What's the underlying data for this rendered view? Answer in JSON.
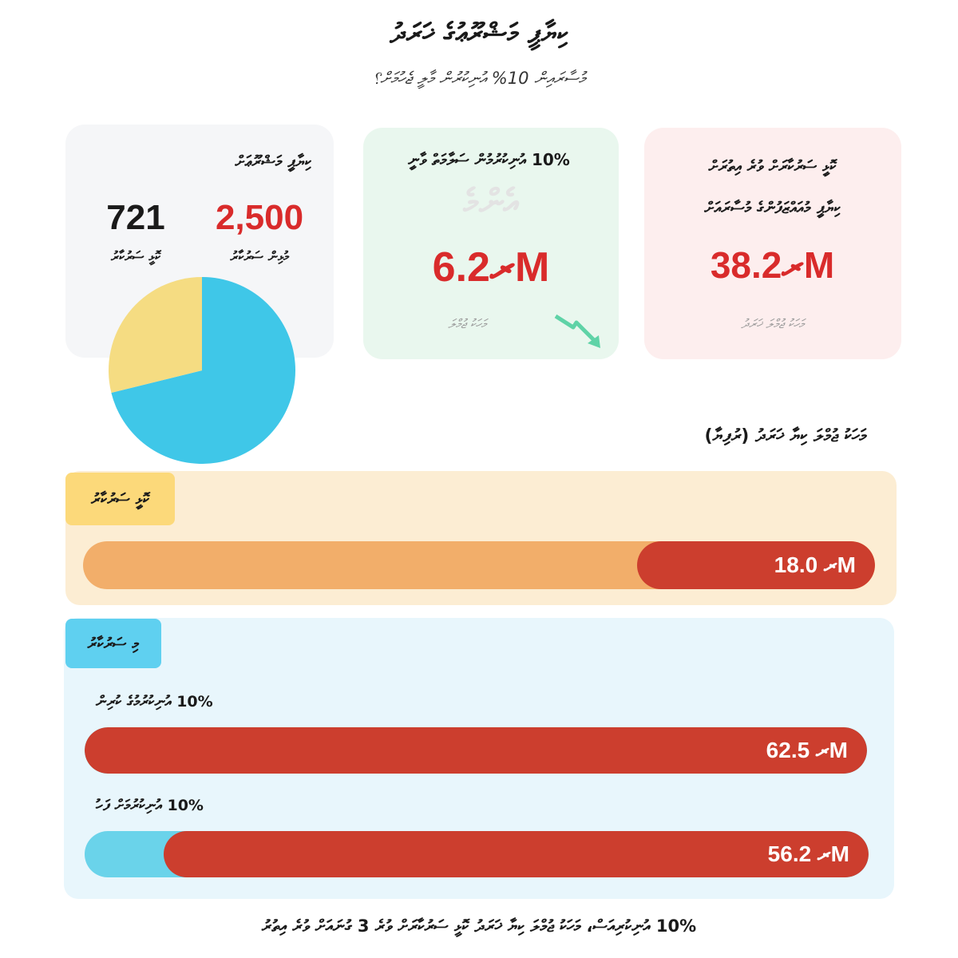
{
  "header": {
    "title": "ކިޔާޕީ މަޝްރޫޢުގެ ޚަރަދު",
    "subtitle": "މުސާރައިން 10% އުނިކުރުން މާލީ ޖެހުމަށް؟"
  },
  "summary_card": {
    "title": "ކިޔާޕީ މަޝްރޫޢަށް",
    "total_value": "2,500",
    "total_label": "މުޅިން ސަރުކާރު",
    "part_value": "721",
    "part_label": "ކޮޅީ ސަރުކާރު",
    "colors": {
      "total": "#d92b2b",
      "part": "#1a1a1a"
    }
  },
  "saved_card": {
    "title": "10% އުނިކުރުމުން ސަލާމަތް ވާނީ",
    "watermark": "އެންމެ",
    "amount": "ރ6.2M",
    "note": "މަހަކު ޖުމްލަ",
    "icon": "trend-down-arrow-icon",
    "colors": {
      "amount": "#d92b2b",
      "arrow": "#5fd3a7"
    }
  },
  "cost_card": {
    "title_line1": "ކޮޅީ ސަރުކާރަށް ވުރެ އިތުރަށް",
    "title_line2": "ކިޔާޕީ މުއައްޒަފުންގެ މުސާރައަށް",
    "amount": "ރ38.2M",
    "note": "މަހަކު ޖުމްލަ ޚަރަދު",
    "colors": {
      "amount": "#d92b2b"
    }
  },
  "monthly_section_title": "މަހަކު ޖުމްލަ ކިޔާ ޚަރަދު (ރުފިޔާ)",
  "sections": {
    "provincial": {
      "label": "ކޮޅީ ސަރުކާރު",
      "bar_value": "ރ 18.0M"
    },
    "central": {
      "label": "މި ސަރުކާރު",
      "row1_label": "10% އުނިކުރުމުގެ ކުރިން",
      "row1_value": "ރ 62.5M",
      "row2_label": "10% އުނިކުރުމަށް ފަހު",
      "row2_value": "ރ 56.2M"
    }
  },
  "footer": {
    "text": "10% އުނިކުރިއަސް، މަހަކު ޖުމްލަ ކިޔާ ޚަރަދު ކޮޅީ ސަރުކާރަށް ވުރެ 3 ގުނައަށް ވުރެ އިތުރު"
  },
  "chart_data": [
    {
      "type": "pie",
      "categories": [
        "ކޮޅީ ސަރުކާރު",
        "މުޅިން ސަރުކާރު"
      ],
      "values": [
        721,
        1779
      ],
      "total": 2500,
      "colors": [
        "#f5dc82",
        "#3fc7e8"
      ]
    },
    {
      "type": "bar",
      "orientation": "horizontal",
      "categories": [
        "ކޮޅީ ސަރުކާރު",
        "10% އުނިކުރުމުގެ ކުރިން",
        "10% އުނިކުރުމަށް ފަހު"
      ],
      "values": [
        18.0,
        62.5,
        56.2
      ],
      "unit": "M",
      "xlim": [
        0,
        62.5
      ],
      "colors": {
        "bar": "#cc3e2e",
        "provincial_track": "#f2ae6a",
        "central_track": "#6ad3ea"
      }
    }
  ]
}
